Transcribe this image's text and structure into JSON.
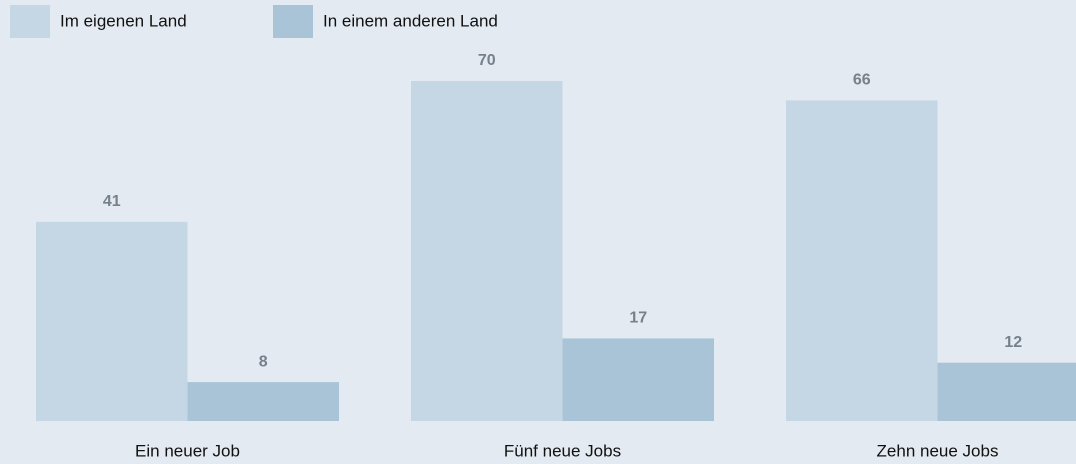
{
  "chart_data": {
    "type": "bar",
    "categories": [
      "Ein neuer Job",
      "Fünf neue Jobs",
      "Zehn neue Jobs"
    ],
    "series": [
      {
        "name": "Im eigenen Land",
        "color": "#c5d7e5",
        "values": [
          41,
          70,
          66
        ]
      },
      {
        "name": "In einem anderen Land",
        "color": "#a8c4d6",
        "values": [
          8,
          17,
          12
        ]
      }
    ]
  }
}
